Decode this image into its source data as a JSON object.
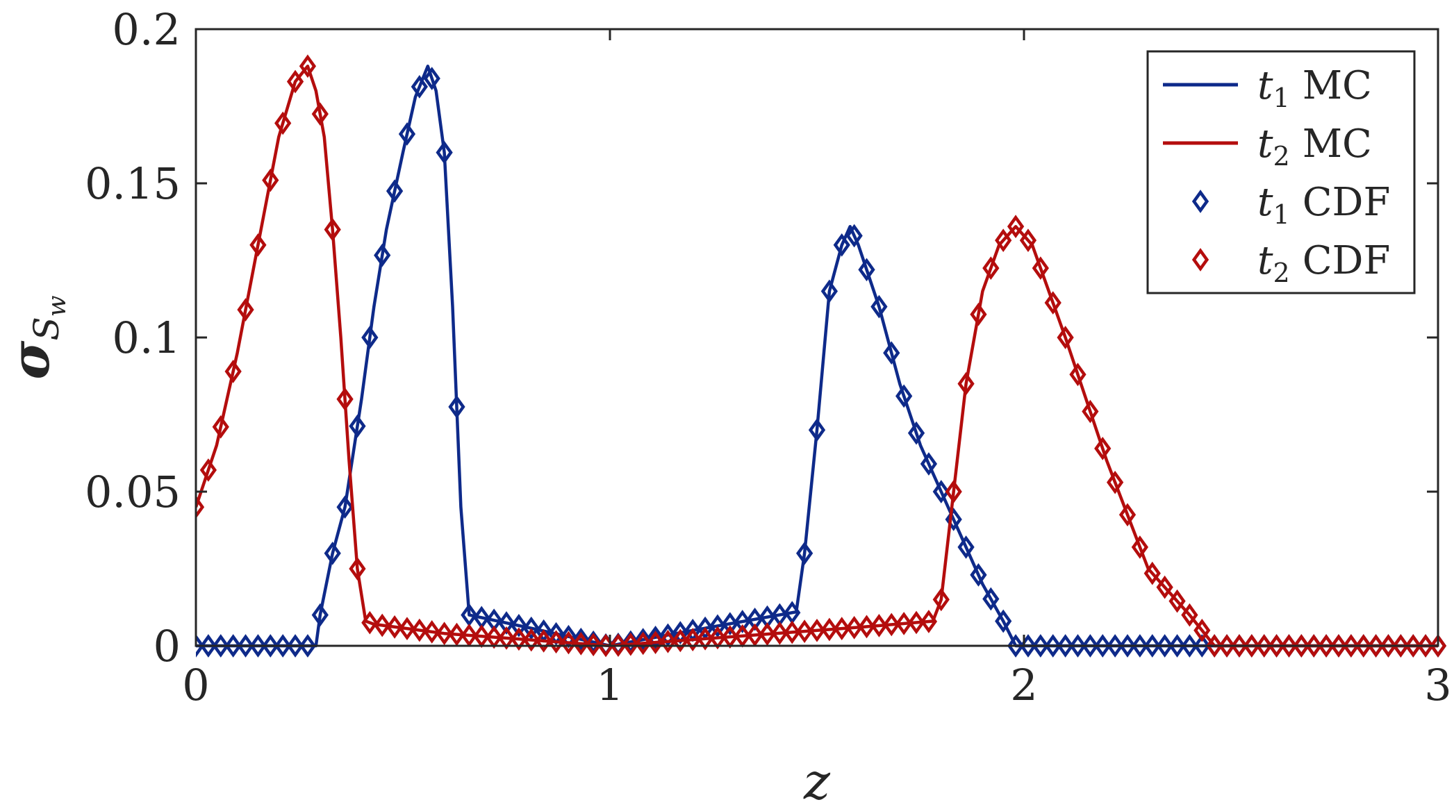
{
  "chart_data": {
    "type": "line",
    "xlabel": "z",
    "ylabel": {
      "symbol": "σ",
      "sub": "S",
      "subsub": "w"
    },
    "xlim": [
      0,
      3
    ],
    "ylim": [
      0,
      0.2
    ],
    "xticks": [
      0,
      1,
      2,
      3
    ],
    "xtick_labels": [
      "0",
      "1",
      "2",
      "3"
    ],
    "yticks": [
      0,
      0.05,
      0.1,
      0.15,
      0.2
    ],
    "ytick_labels": [
      "0",
      "0.05",
      "0.1",
      "0.15",
      "0.2"
    ],
    "grid": false,
    "legend_position": "top-right",
    "legend": [
      {
        "t": "t",
        "sub": "1",
        "method": "MC",
        "style": "line",
        "color": "#0e2a8a"
      },
      {
        "t": "t",
        "sub": "2",
        "method": "MC",
        "style": "line",
        "color": "#b40d0d"
      },
      {
        "t": "t",
        "sub": "1",
        "method": "CDF",
        "style": "diamond",
        "color": "#0e2a8a"
      },
      {
        "t": "t",
        "sub": "2",
        "method": "CDF",
        "style": "diamond",
        "color": "#b40d0d"
      }
    ],
    "series": [
      {
        "name": "t1 MC",
        "style": "line",
        "color": "#0e2a8a",
        "x": [
          0,
          0.29,
          0.3,
          0.33,
          0.36,
          0.4,
          0.43,
          0.46,
          0.5,
          0.53,
          0.56,
          0.58,
          0.6,
          0.62,
          0.64,
          0.66,
          0.8,
          1.0,
          1.2,
          1.45,
          1.47,
          1.5,
          1.53,
          1.56,
          1.58,
          1.6,
          1.65,
          1.7,
          1.75,
          1.8,
          1.85,
          1.9,
          1.95,
          1.98,
          2.3,
          3.0
        ],
        "y": [
          0,
          0,
          0.01,
          0.03,
          0.045,
          0.08,
          0.11,
          0.135,
          0.16,
          0.178,
          0.188,
          0.18,
          0.16,
          0.11,
          0.045,
          0.01,
          0.006,
          0,
          0.005,
          0.011,
          0.03,
          0.07,
          0.115,
          0.13,
          0.136,
          0.13,
          0.11,
          0.085,
          0.065,
          0.05,
          0.035,
          0.02,
          0.008,
          0,
          0,
          0
        ]
      },
      {
        "name": "t2 MC",
        "style": "line",
        "color": "#b40d0d",
        "x": [
          0,
          0.05,
          0.1,
          0.15,
          0.2,
          0.24,
          0.27,
          0.29,
          0.31,
          0.33,
          0.35,
          0.37,
          0.39,
          0.41,
          0.43,
          0.6,
          0.8,
          1.0,
          1.2,
          1.4,
          1.6,
          1.78,
          1.8,
          1.83,
          1.86,
          1.9,
          1.94,
          1.98,
          2.02,
          2.1,
          2.2,
          2.3,
          2.4,
          2.46,
          2.6,
          3.0
        ],
        "y": [
          0.045,
          0.065,
          0.095,
          0.13,
          0.165,
          0.183,
          0.188,
          0.18,
          0.165,
          0.135,
          0.1,
          0.06,
          0.025,
          0.008,
          0.007,
          0.004,
          0.002,
          0,
          0.002,
          0.004,
          0.006,
          0.008,
          0.015,
          0.05,
          0.085,
          0.115,
          0.13,
          0.136,
          0.13,
          0.1,
          0.06,
          0.025,
          0.01,
          0,
          0,
          0
        ]
      }
    ]
  }
}
